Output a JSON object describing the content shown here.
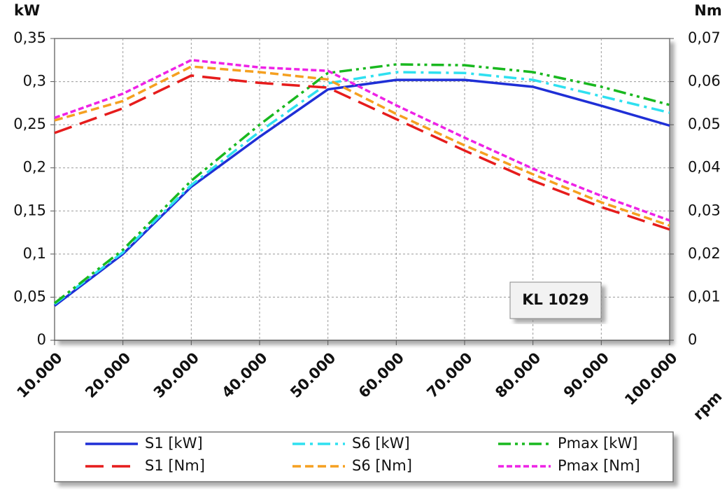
{
  "chart_data": {
    "type": "line",
    "y_label": "kW",
    "y2_label": "Nm",
    "x_label": "rpm",
    "annotation": "KL 1029",
    "x": [
      10000,
      20000,
      30000,
      40000,
      50000,
      60000,
      70000,
      80000,
      90000,
      100000
    ],
    "xlim": [
      10000,
      100000
    ],
    "xticks": [
      {
        "value": 10000,
        "label": "10.000"
      },
      {
        "value": 20000,
        "label": "20.000"
      },
      {
        "value": 30000,
        "label": "30.000"
      },
      {
        "value": 40000,
        "label": "40.000"
      },
      {
        "value": 50000,
        "label": "50.000"
      },
      {
        "value": 60000,
        "label": "60.000"
      },
      {
        "value": 70000,
        "label": "70.000"
      },
      {
        "value": 80000,
        "label": "80.000"
      },
      {
        "value": 90000,
        "label": "90.000"
      },
      {
        "value": 100000,
        "label": "100.000"
      }
    ],
    "ylim": [
      0,
      0.35
    ],
    "yticks": [
      0,
      {
        "value": 0.05,
        "label": "0,05"
      },
      {
        "value": 0.1,
        "label": "0,1"
      },
      {
        "value": 0.15,
        "label": "0,15"
      },
      {
        "value": 0.2,
        "label": "0,2"
      },
      {
        "value": 0.25,
        "label": "0,25"
      },
      {
        "value": 0.3,
        "label": "0,3"
      },
      {
        "value": 0.35,
        "label": "0,35"
      }
    ],
    "y2lim": [
      0,
      0.07
    ],
    "y2ticks": [
      0,
      {
        "value": 0.01,
        "label": "0,01"
      },
      {
        "value": 0.02,
        "label": "0,02"
      },
      {
        "value": 0.03,
        "label": "0,03"
      },
      {
        "value": 0.04,
        "label": "0,04"
      },
      {
        "value": 0.05,
        "label": "0,05"
      },
      {
        "value": 0.06,
        "label": "0,06"
      },
      {
        "value": 0.07,
        "label": "0,07"
      }
    ],
    "grid": true,
    "series": [
      {
        "name": "S1 [kW]",
        "color": "#1f2fd6",
        "dash": "solid",
        "values": [
          0.04,
          0.1,
          0.178,
          0.236,
          0.291,
          0.302,
          0.302,
          0.294,
          0.272,
          0.249
        ]
      },
      {
        "name": "S6 [kW]",
        "color": "#2fe0f0",
        "dash": "dash-dot",
        "values": [
          0.042,
          0.102,
          0.18,
          0.242,
          0.298,
          0.311,
          0.31,
          0.302,
          0.283,
          0.264
        ]
      },
      {
        "name": "Pmax [kW]",
        "color": "#19b81f",
        "dash": "dash-dot-dot",
        "values": [
          0.043,
          0.105,
          0.185,
          0.25,
          0.31,
          0.32,
          0.319,
          0.311,
          0.294,
          0.273
        ]
      },
      {
        "name": "S1 [Nm]",
        "color": "#e61c1c",
        "dash": "long-dash",
        "axis": "y2",
        "values": [
          0.0481,
          0.0538,
          0.0614,
          0.0597,
          0.0586,
          0.0513,
          0.044,
          0.037,
          0.0309,
          0.0257
        ]
      },
      {
        "name": "S6 [Nm]",
        "color": "#f5a020",
        "dash": "dash",
        "axis": "y2",
        "values": [
          0.051,
          0.0555,
          0.0635,
          0.0622,
          0.0605,
          0.0525,
          0.0452,
          0.0385,
          0.032,
          0.0266
        ]
      },
      {
        "name": "Pmax [Nm]",
        "color": "#ee22e6",
        "dash": "short-dash",
        "axis": "y2",
        "values": [
          0.0516,
          0.0572,
          0.065,
          0.0633,
          0.0625,
          0.0545,
          0.047,
          0.0398,
          0.0335,
          0.0278
        ]
      }
    ]
  }
}
